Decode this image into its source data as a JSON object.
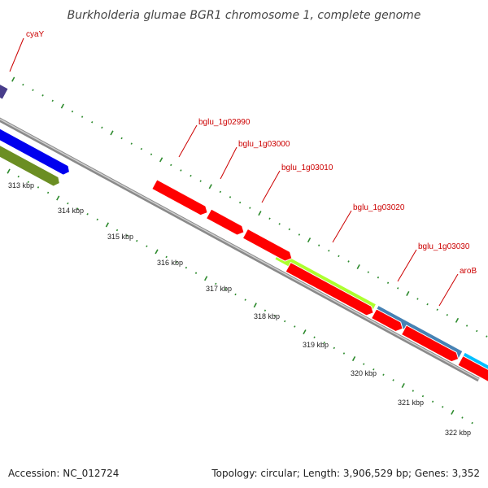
{
  "title": "Burkholderia glumae BGR1 chromosome 1, complete genome",
  "footer": {
    "accession": "Accession: NC_012724",
    "summary": "Topology: circular; Length: 3,906,529 bp; Genes: 3,352"
  },
  "colors": {
    "backbone": "#8a8a8a",
    "ticks": "#2e8b2e",
    "label": "#cc0000",
    "red_gene": "#ff0000",
    "blue_gene": "#0000ee",
    "olive_gene": "#6b8e23",
    "purple_gene": "#483d8b",
    "lime_gene": "#adff2f",
    "steel_gene": "#4682b4",
    "sky_gene": "#00bfff"
  },
  "kbp_labels": [
    "313 kbp",
    "314 kbp",
    "315 kbp",
    "316 kbp",
    "317 kbp",
    "318 kbp",
    "319 kbp",
    "320 kbp",
    "321 kbp",
    "322 kbp"
  ],
  "gene_labels": [
    "cyaY",
    "bglu_1g02990",
    "bglu_1g03000",
    "bglu_1g03010",
    "bglu_1g03020",
    "bglu_1g03030",
    "aroB"
  ]
}
